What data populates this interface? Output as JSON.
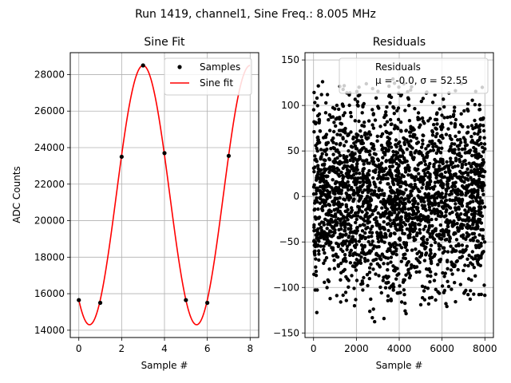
{
  "figure": {
    "suptitle": "Run 1419, channel1, Sine Freq.: 8.005 MHz"
  },
  "chart_data": [
    {
      "type": "scatter+line",
      "title": "Sine Fit",
      "xlabel": "Sample #",
      "ylabel": "ADC Counts",
      "xlim": [
        -0.4,
        8.4
      ],
      "ylim": [
        13600,
        29200
      ],
      "xticks": [
        0,
        2,
        4,
        6,
        8
      ],
      "yticks": [
        14000,
        16000,
        18000,
        20000,
        22000,
        24000,
        26000,
        28000
      ],
      "grid": true,
      "legend": {
        "placement": "top-right",
        "entries": [
          "Samples",
          "Sine fit"
        ]
      },
      "series": [
        {
          "name": "Samples",
          "kind": "scatter",
          "color": "#000000",
          "x": [
            0,
            1,
            2,
            3,
            4,
            5,
            6,
            7
          ],
          "y": [
            15650,
            15500,
            23500,
            28500,
            23700,
            15650,
            15500,
            23550
          ]
        },
        {
          "name": "Sine fit",
          "kind": "line",
          "color": "#ff0000",
          "model": {
            "offset": 21400,
            "amplitude": 7100,
            "period": 5,
            "peak_at": 3
          },
          "x_range": [
            0,
            8
          ]
        }
      ]
    },
    {
      "type": "scatter",
      "title": "Residuals",
      "xlabel": "Sample #",
      "ylabel": "",
      "xlim": [
        -400,
        8400
      ],
      "ylim": [
        -155,
        158
      ],
      "xticks": [
        0,
        2000,
        4000,
        6000,
        8000
      ],
      "yticks": [
        -150,
        -100,
        -50,
        0,
        50,
        100,
        150
      ],
      "grid": true,
      "legend": {
        "placement": "top-right",
        "entries": [
          "Residuals"
        ],
        "stats_line": "μ = -0.0, σ = 52.55"
      },
      "series": [
        {
          "name": "Residuals",
          "kind": "scatter",
          "color": "#000000",
          "n_points": 8000,
          "mean": 0.0,
          "std": 52.55
        }
      ]
    }
  ]
}
